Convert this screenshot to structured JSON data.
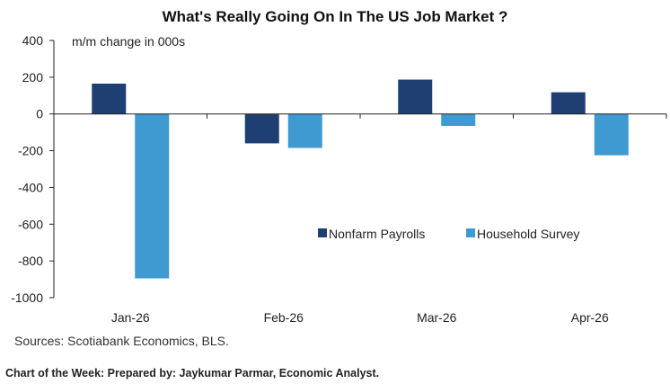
{
  "chart_data": {
    "type": "bar",
    "title": "What's Really Going On In The US Job Market ?",
    "ylabel": "m/m change in 000s",
    "xlabel": "",
    "categories": [
      "Jan-26",
      "Feb-26",
      "Mar-26",
      "Apr-26"
    ],
    "series": [
      {
        "name": "Nonfarm Payrolls",
        "color": "#1f3f72",
        "values": [
          165,
          -160,
          187,
          118
        ]
      },
      {
        "name": "Household Survey",
        "color": "#3e9ad0",
        "values": [
          -895,
          -185,
          -65,
          -225
        ]
      }
    ],
    "ylim": [
      -1000,
      400
    ],
    "yticks": [
      400,
      200,
      0,
      -200,
      -400,
      -600,
      -800,
      -1000
    ],
    "legend_position": "center-right",
    "grid": false
  },
  "footer": {
    "source": "Sources: Scotiabank Economics, BLS.",
    "credit": "Chart of the Week: Prepared by: Jaykumar Parmar, Economic Analyst."
  }
}
